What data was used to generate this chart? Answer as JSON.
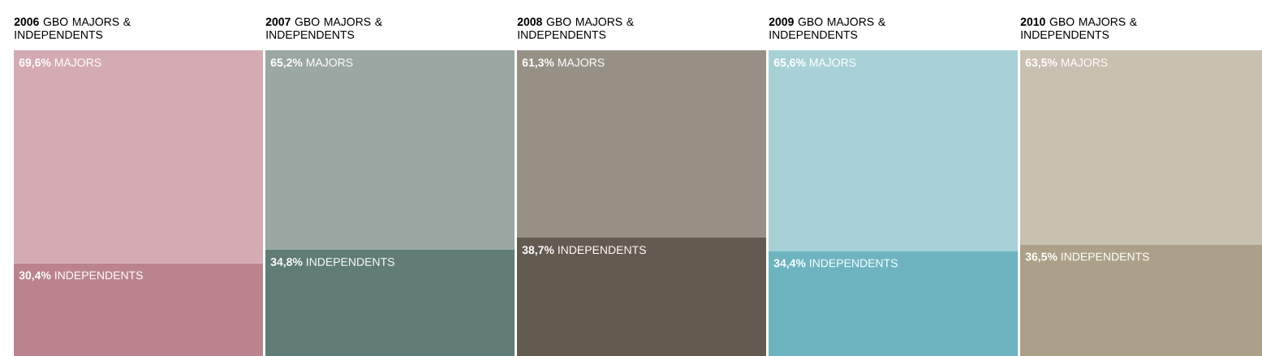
{
  "chart_data": [
    {
      "type": "bar",
      "title": "**2006** GBO MAJORS & INDEPENDENTS",
      "categories": [
        null
      ],
      "stacked": true,
      "series": [
        {
          "name": "INDEPENDENTS",
          "color": "#bb838d",
          "values": [
            30.4
          ],
          "value_labels": [
            "30,4%"
          ]
        },
        {
          "name": "MAJORS",
          "color": "#d4abb3",
          "values": [
            69.6
          ],
          "value_labels": [
            "69,6%"
          ]
        }
      ]
    },
    {
      "type": "bar",
      "title": "**2007** GBO MAJORS & INDEPENDENTS",
      "categories": [
        null
      ],
      "stacked": true,
      "series": [
        {
          "name": "INDEPENDENTS",
          "color": "#617c76",
          "values": [
            34.8
          ],
          "value_labels": [
            "34,8%"
          ]
        },
        {
          "name": "MAJORS",
          "color": "#9aa7a2",
          "values": [
            65.2
          ],
          "value_labels": [
            "65,2%"
          ]
        }
      ]
    },
    {
      "type": "bar",
      "title": "**2008** GBO MAJORS & INDEPENDENTS",
      "categories": [
        null
      ],
      "stacked": true,
      "series": [
        {
          "name": "INDEPENDENTS",
          "color": "#635b4f",
          "values": [
            38.7
          ],
          "value_labels": [
            "38,7%"
          ]
        },
        {
          "name": "MAJORS",
          "color": "#969184",
          "values": [
            61.3
          ],
          "value_labels": [
            "61,3%"
          ]
        }
      ]
    },
    {
      "type": "bar",
      "title": "**2009** GBO MAJORS & INDEPENDENTS",
      "categories": [
        null
      ],
      "stacked": true,
      "series": [
        {
          "name": "INDEPENDENTS",
          "color": "#6db4c0",
          "values": [
            34.4
          ],
          "value_labels": [
            "34,4%"
          ]
        },
        {
          "name": "MAJORS",
          "color": "#a7d1d6",
          "values": [
            65.6
          ],
          "value_labels": [
            "65,6%"
          ]
        }
      ]
    },
    {
      "type": "bar",
      "title": "**2010** GBO MAJORS & INDEPENDENTS",
      "categories": [
        null
      ],
      "stacked": true,
      "series": [
        {
          "name": "INDEPENDENTS",
          "color": "#ada089",
          "values": [
            36.5
          ],
          "value_labels": [
            "36,5%"
          ]
        },
        {
          "name": "MAJORS",
          "color": "#c8c0b0",
          "values": [
            63.5
          ],
          "value_labels": [
            "63,5%"
          ]
        }
      ]
    }
  ]
}
